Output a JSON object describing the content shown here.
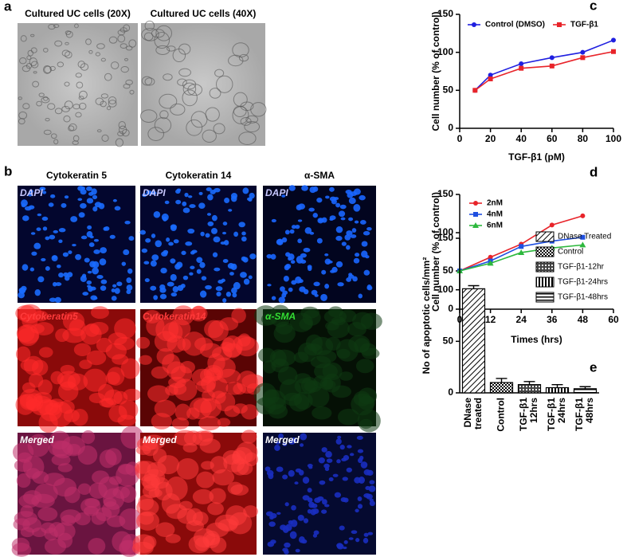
{
  "panel_a": {
    "label": "a",
    "images": [
      "Cultured UC cells (20X)",
      "Cultured UC cells (40X)"
    ]
  },
  "panel_b": {
    "label": "b",
    "columns": [
      "Cytokeratin 5",
      "Cytokeratin 14",
      "α-SMA"
    ],
    "image_labels": [
      [
        "DAPI",
        "DAPI",
        "DAPI"
      ],
      [
        "Cytokeratin5",
        "Cytokeratin14",
        "α-SMA"
      ],
      [
        "Merged",
        "Merged",
        "Merged"
      ]
    ]
  },
  "chart_data": [
    {
      "type": "line",
      "label": "c",
      "xlabel": "TGF-β1 (pM)",
      "ylabel": "Cell number (% of control)",
      "x": [
        10,
        20,
        40,
        60,
        80,
        100
      ],
      "series": [
        {
          "name": "Control (DMSO)",
          "color": "#1f1fe0",
          "marker": "circle",
          "values": [
            50,
            70,
            85,
            93,
            100,
            116
          ]
        },
        {
          "name": "TGF-β1",
          "color": "#e8242a",
          "marker": "square",
          "values": [
            50,
            65,
            79,
            82,
            93,
            101
          ]
        }
      ],
      "xlim": [
        0,
        100
      ],
      "xticks": [
        0,
        20,
        40,
        60,
        80,
        100
      ],
      "ylim": [
        0,
        150
      ],
      "yticks": [
        0,
        50,
        100,
        150
      ],
      "legend": "upper left"
    },
    {
      "type": "line",
      "label": "d",
      "xlabel": "Times (hrs)",
      "ylabel": "Cell number (% of control)",
      "x": [
        0,
        12,
        24,
        36,
        48
      ],
      "series": [
        {
          "name": "2nM",
          "color": "#e8242a",
          "marker": "circle",
          "values": [
            50,
            68,
            85,
            110,
            122
          ]
        },
        {
          "name": "4nM",
          "color": "#1f4fe0",
          "marker": "square",
          "values": [
            50,
            63,
            82,
            89,
            94
          ]
        },
        {
          "name": "6nM",
          "color": "#2db83d",
          "marker": "triangle",
          "values": [
            50,
            60,
            74,
            80,
            84
          ]
        }
      ],
      "xlim": [
        0,
        60
      ],
      "xticks": [
        0,
        12,
        24,
        36,
        48,
        60
      ],
      "ylim": [
        0,
        150
      ],
      "yticks": [
        0,
        50,
        100,
        150
      ],
      "legend": "upper left"
    },
    {
      "type": "bar",
      "label": "e",
      "ylabel": "No of apoptotic cells/mm²",
      "categories": [
        [
          "DNase",
          "treated"
        ],
        [
          "Control"
        ],
        [
          "TGF-β1",
          "12hrs"
        ],
        [
          "TGF-β1",
          "24hrs"
        ],
        [
          "TGF-β1",
          "48hrs"
        ]
      ],
      "values": [
        101,
        10,
        8,
        5,
        4
      ],
      "errors": [
        3,
        4,
        3,
        3,
        2
      ],
      "patterns": [
        "diagonal",
        "dots",
        "crosshatch",
        "vertical",
        "horizontal"
      ],
      "legend_entries": [
        "DNase Treated",
        "Control",
        "TGF-β1-12hr",
        "TGF-β1-24hrs",
        "TGF-β1-48hrs"
      ],
      "ylim": [
        0,
        150
      ],
      "yticks": [
        0,
        50,
        100,
        150
      ],
      "legend": "upper right"
    }
  ]
}
